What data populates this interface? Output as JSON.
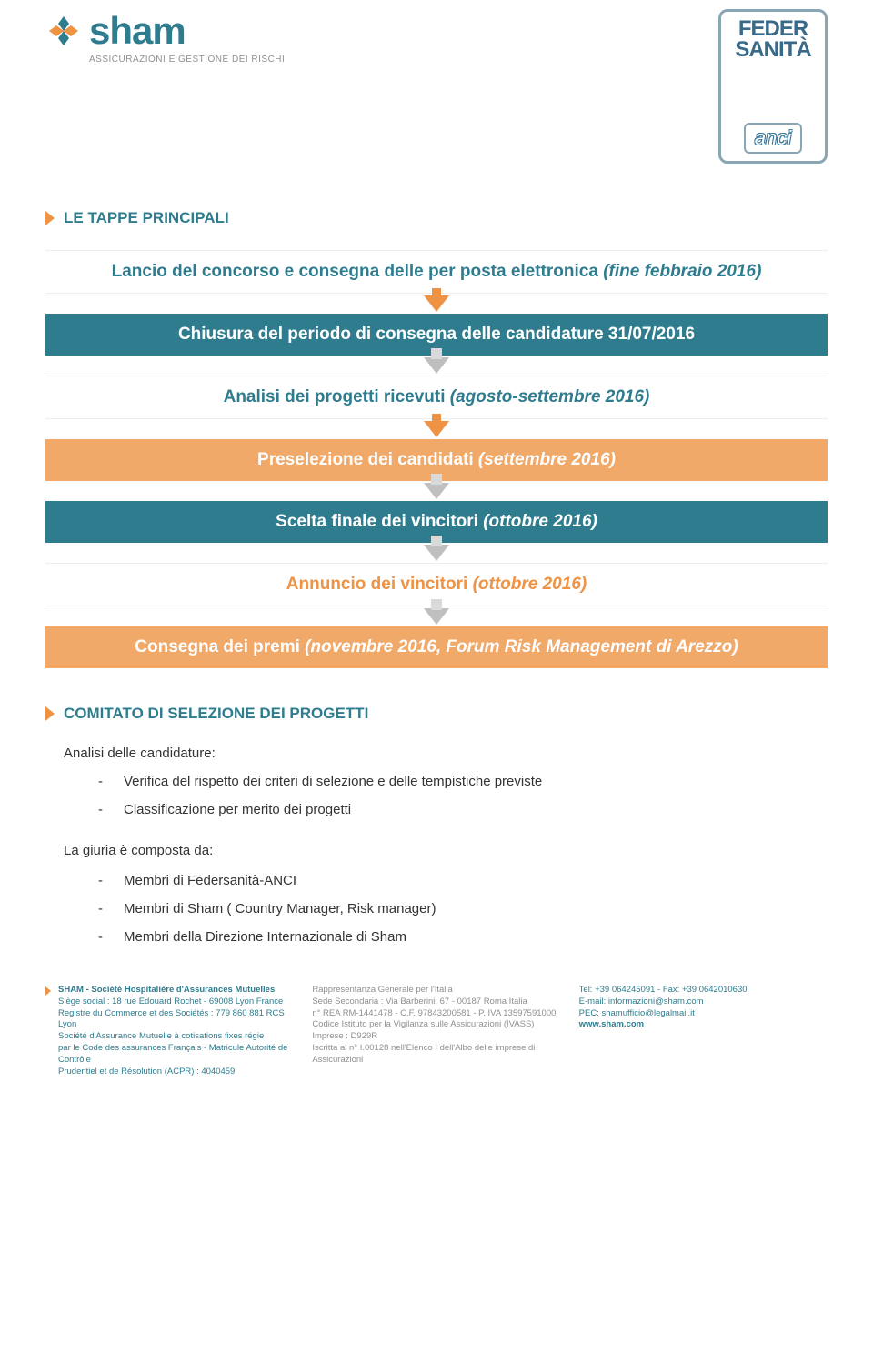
{
  "colors": {
    "teal": "#2e7c8e",
    "teal_dark": "#1f6576",
    "orange": "#ee9244",
    "orange_soft": "#f1a96a",
    "gray": "#8f8f8f",
    "arrow_gray": "#bfbfbf",
    "light_gray": "#d9d9d9",
    "feder_border": "#8aa6b5",
    "feder_text": "#3a6a8a"
  },
  "logos": {
    "sham_name": "sham",
    "sham_tagline": "ASSICURAZIONI E GESTIONE DEI RISCHI",
    "feder_line1": "FEDER",
    "feder_line2": "SANITÀ",
    "feder_line3": "anci"
  },
  "section1": {
    "title": "LE TAPPE PRINCIPALI"
  },
  "flow": [
    {
      "pre": "Lancio del concorso e consegna delle per posta elettronica ",
      "suf": "(fine febbraio 2016)",
      "bg": "white",
      "text_color": "teal",
      "arrow": "orange"
    },
    {
      "pre": "Chiusura del periodo di consegna delle candidature 31/07/2016",
      "suf": "",
      "bg": "teal",
      "text_color": "white",
      "arrow": "gray"
    },
    {
      "pre": "Analisi dei progetti ricevuti ",
      "suf": "(agosto-settembre 2016)",
      "bg": "white",
      "text_color": "teal",
      "arrow": "orange"
    },
    {
      "pre": "Preselezione dei candidati ",
      "suf": "(settembre 2016)",
      "bg": "orange",
      "text_color": "white",
      "arrow": "gray"
    },
    {
      "pre": "Scelta finale dei vincitori ",
      "suf": "(ottobre 2016)",
      "bg": "teal",
      "text_color": "white",
      "arrow": "gray"
    },
    {
      "pre": "Annuncio dei vincitori ",
      "suf": "(ottobre 2016)",
      "bg": "white",
      "text_color": "orange",
      "arrow": "gray"
    },
    {
      "pre": "Consegna dei premi ",
      "suf": "(novembre 2016, Forum Risk Management di Arezzo)",
      "bg": "orange",
      "text_color": "white",
      "arrow": null
    }
  ],
  "section2": {
    "title": "COMITATO DI SELEZIONE DEI PROGETTI",
    "analysis_label": "Analisi delle candidature:",
    "bullets1": [
      "Verifica del rispetto dei criteri di selezione e delle tempistiche previste",
      "Classificazione per merito dei progetti"
    ],
    "jury_label": "La giuria è composta da:",
    "bullets2": [
      "Membri di Federsanità-ANCI",
      "Membri di Sham ( Country Manager, Risk manager)",
      "Membri della Direzione Internazionale di Sham"
    ]
  },
  "footer": {
    "left": [
      "SHAM - Société Hospitalière d'Assurances Mutuelles",
      "Siège social : 18 rue Edouard Rochet - 69008 Lyon France",
      "Registre du Commerce et des Sociétés : 779 860 881 RCS Lyon",
      "Société d'Assurance Mutuelle à cotisations fixes régie",
      "par le Code des assurances Français - Matricule Autorité de Contrôle",
      "Prudentiel et de Résolution (ACPR) : 4040459"
    ],
    "middle": [
      "Rappresentanza Generale per l'Italia",
      "Sede Secondaria : Via Barberini, 67 - 00187 Roma Italia",
      "n° REA RM-1441478 - C.F. 97843200581 - P. IVA 13597591000",
      "Codice Istituto per la Vigilanza sulle Assicurazioni (IVASS) Imprese : D929R",
      "Iscritta al n° I.00128 nell'Elenco I dell'Albo delle imprese di Assicurazioni"
    ],
    "right": [
      "Tel: +39 064245091 - Fax: +39 0642010630",
      "E-mail: informazioni@sham.com",
      "PEC: shamufficio@legalmail.it",
      "www.sham.com"
    ]
  }
}
